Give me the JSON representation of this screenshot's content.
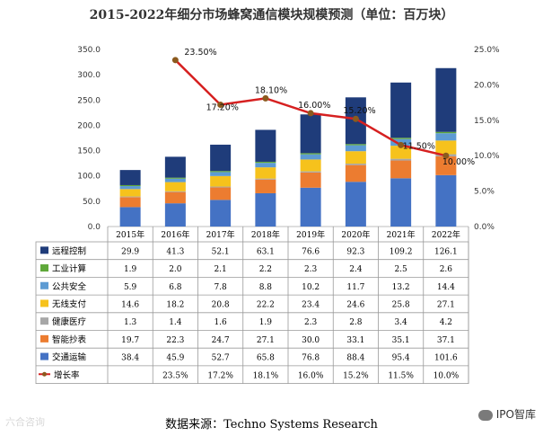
{
  "chart_data": {
    "type": "bar",
    "stacked": true,
    "title": "2015-2022年细分市场蜂窝通信模块规模预测（单位：百万块）",
    "categories": [
      "2015年",
      "2016年",
      "2017年",
      "2018年",
      "2019年",
      "2020年",
      "2021年",
      "2022年"
    ],
    "ylim": [
      0,
      350
    ],
    "yticks": [
      "0.0",
      "50.0",
      "100.0",
      "150.0",
      "200.0",
      "250.0",
      "300.0",
      "350.0"
    ],
    "y2lim": [
      0,
      25
    ],
    "y2ticks": [
      "0.0%",
      "5.0%",
      "10.0%",
      "15.0%",
      "20.0%",
      "25.0%"
    ],
    "grid": false,
    "series": [
      {
        "name": "远程控制",
        "color": "#1f3c7a",
        "values": [
          29.9,
          41.3,
          52.1,
          63.1,
          76.6,
          92.3,
          109.2,
          126.1
        ],
        "labels": [
          "29.9",
          "41.3",
          "52.1",
          "63.1",
          "76.6",
          "92.3",
          "109.2",
          "126.1"
        ]
      },
      {
        "name": "工业计算",
        "color": "#5fa83a",
        "values": [
          1.9,
          2.0,
          2.1,
          2.2,
          2.3,
          2.4,
          2.5,
          2.6
        ],
        "labels": [
          "1.9",
          "2.0",
          "2.1",
          "2.2",
          "2.3",
          "2.4",
          "2.5",
          "2.6"
        ]
      },
      {
        "name": "公共安全",
        "color": "#5d9bd3",
        "values": [
          5.9,
          6.8,
          7.8,
          8.8,
          10.2,
          11.7,
          13.2,
          14.4
        ],
        "labels": [
          "5.9",
          "6.8",
          "7.8",
          "8.8",
          "10.2",
          "11.7",
          "13.2",
          "14.4"
        ]
      },
      {
        "name": "无线支付",
        "color": "#f6c21c",
        "values": [
          14.6,
          18.2,
          20.8,
          22.2,
          23.4,
          24.6,
          25.8,
          27.1
        ],
        "labels": [
          "14.6",
          "18.2",
          "20.8",
          "22.2",
          "23.4",
          "24.6",
          "25.8",
          "27.1"
        ]
      },
      {
        "name": "健康医疗",
        "color": "#a7a7a7",
        "values": [
          1.3,
          1.4,
          1.6,
          1.9,
          2.3,
          2.8,
          3.4,
          4.2
        ],
        "labels": [
          "1.3",
          "1.4",
          "1.6",
          "1.9",
          "2.3",
          "2.8",
          "3.4",
          "4.2"
        ]
      },
      {
        "name": "智能抄表",
        "color": "#ec7c30",
        "values": [
          19.7,
          22.3,
          24.7,
          27.1,
          30.0,
          33.1,
          35.1,
          37.1
        ],
        "labels": [
          "19.7",
          "22.3",
          "24.7",
          "27.1",
          "30.0",
          "33.1",
          "35.1",
          "37.1"
        ]
      },
      {
        "name": "交通运输",
        "color": "#4472c4",
        "values": [
          38.4,
          45.9,
          52.7,
          65.8,
          76.8,
          88.4,
          95.4,
          101.6
        ],
        "labels": [
          "38.4",
          "45.9",
          "52.7",
          "65.8",
          "76.8",
          "88.4",
          "95.4",
          "101.6"
        ]
      }
    ],
    "growth": {
      "name": "增长率",
      "color": "#d62020",
      "values": [
        null,
        23.5,
        17.2,
        18.1,
        16.0,
        15.2,
        11.5,
        10.0
      ],
      "labels": [
        "",
        "23.5%",
        "17.2%",
        "18.1%",
        "16.0%",
        "15.2%",
        "11.5%",
        "10.0%"
      ],
      "point_labels": [
        "",
        "23.50%",
        "17.20%",
        "18.10%",
        "16.00%",
        "15.20%",
        "11.50%",
        "10.00%"
      ]
    }
  },
  "source": "数据来源：Techno Systems Research",
  "watermark_left": "六合咨询",
  "watermark_right": "IPO智库"
}
